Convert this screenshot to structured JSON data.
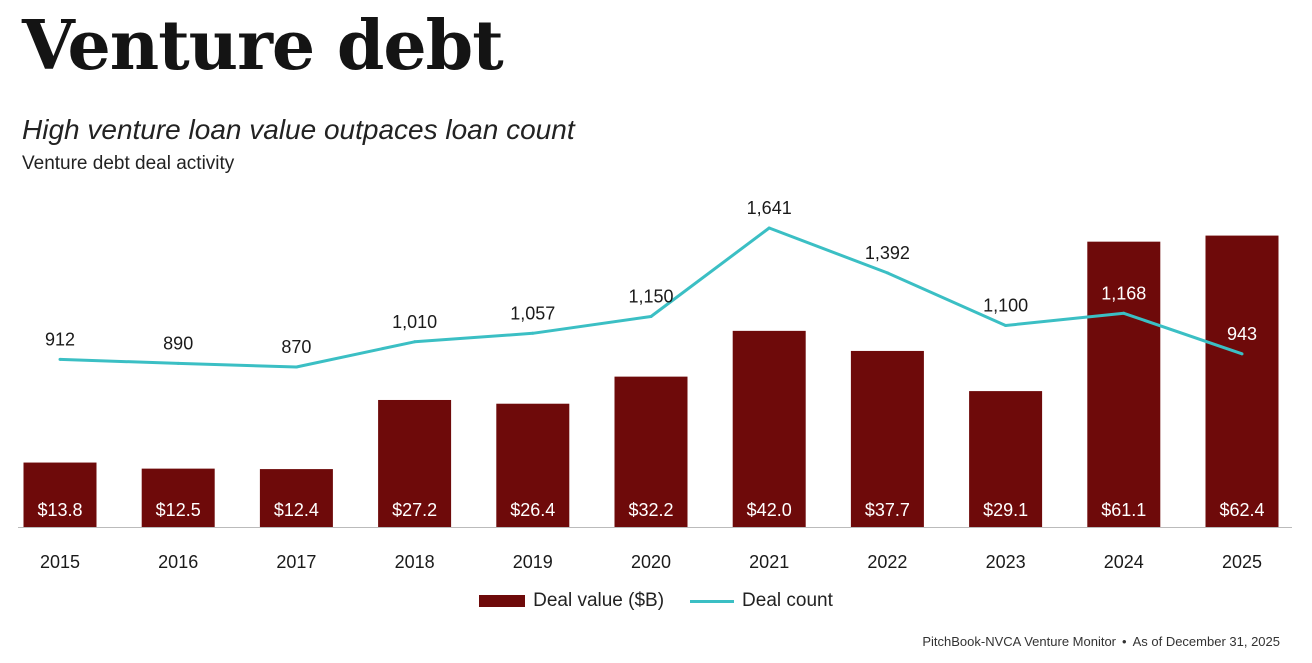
{
  "header": {
    "title": "Venture debt",
    "subtitle": "High venture loan value outpaces loan count",
    "caption": "Venture debt deal activity"
  },
  "chart_data": {
    "type": "bar",
    "categories": [
      "2015",
      "2016",
      "2017",
      "2018",
      "2019",
      "2020",
      "2021",
      "2022",
      "2023",
      "2024",
      "2025"
    ],
    "series": [
      {
        "name": "Deal value ($B)",
        "type": "bar",
        "color": "#6e0a0a",
        "values": [
          13.8,
          12.5,
          12.4,
          27.2,
          26.4,
          32.2,
          42.0,
          37.7,
          29.1,
          61.1,
          62.4
        ],
        "labels": [
          "$13.8",
          "$12.5",
          "$12.4",
          "$27.2",
          "$26.4",
          "$32.2",
          "$42.0",
          "$37.7",
          "$29.1",
          "$61.1",
          "$62.4"
        ]
      },
      {
        "name": "Deal count",
        "type": "line",
        "color": "#3bbfc4",
        "values": [
          912,
          890,
          870,
          1010,
          1057,
          1150,
          1641,
          1392,
          1100,
          1168,
          943
        ],
        "labels": [
          "912",
          "890",
          "870",
          "1,010",
          "1,057",
          "1,150",
          "1,641",
          "1,392",
          "1,100",
          "1,168",
          "943"
        ]
      }
    ],
    "legend_position": "bottom-center",
    "grid": false
  },
  "footer": {
    "source": "PitchBook-NVCA Venture Monitor",
    "separator": "•",
    "as_of": "As of December 31, 2025"
  }
}
